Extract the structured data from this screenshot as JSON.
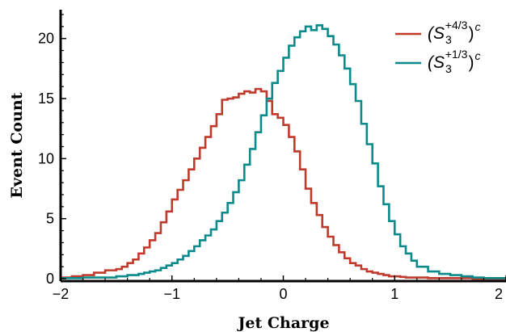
{
  "chart_data": {
    "type": "line",
    "step": true,
    "xlabel": "Jet Charge",
    "ylabel": "Event Count",
    "xlim": [
      -2,
      2
    ],
    "ylim": [
      -0.2,
      22.4
    ],
    "x_ticks": [
      -2,
      -1,
      0,
      1,
      2
    ],
    "y_ticks": [
      0,
      5,
      10,
      15,
      20
    ],
    "x_tick_labels": [
      "−2",
      "−1",
      "0",
      "1",
      "2"
    ],
    "y_tick_labels": [
      "0",
      "5",
      "10",
      "15",
      "20"
    ],
    "grid": false,
    "legend_position": "top-right",
    "bin_edges": [
      -2.0,
      -1.9,
      -1.8,
      -1.7,
      -1.6,
      -1.5,
      -1.45,
      -1.4,
      -1.35,
      -1.3,
      -1.25,
      -1.2,
      -1.15,
      -1.1,
      -1.05,
      -1.0,
      -0.95,
      -0.9,
      -0.85,
      -0.8,
      -0.75,
      -0.7,
      -0.65,
      -0.6,
      -0.55,
      -0.5,
      -0.45,
      -0.4,
      -0.35,
      -0.3,
      -0.25,
      -0.2,
      -0.15,
      -0.1,
      -0.05,
      0.0,
      0.05,
      0.1,
      0.15,
      0.2,
      0.25,
      0.3,
      0.35,
      0.4,
      0.45,
      0.5,
      0.55,
      0.6,
      0.65,
      0.7,
      0.75,
      0.8,
      0.85,
      0.9,
      0.95,
      1.0,
      1.05,
      1.1,
      1.15,
      1.2,
      1.3,
      1.4,
      1.5,
      1.6,
      1.7,
      1.8,
      1.9,
      2.0
    ],
    "series": [
      {
        "name": "(S3+4/3)c",
        "legend": {
          "base": "(S",
          "sub": "3",
          "sup": "+4/3",
          "close": ")",
          "exp": "c"
        },
        "color": "#c0392b",
        "values": [
          0.1,
          0.2,
          0.3,
          0.5,
          0.7,
          0.8,
          1.0,
          1.3,
          1.6,
          2.1,
          2.6,
          3.2,
          3.8,
          4.7,
          5.6,
          6.6,
          7.4,
          8.2,
          9.1,
          10.0,
          10.9,
          11.8,
          12.7,
          13.7,
          14.9,
          15.0,
          15.1,
          15.4,
          15.6,
          15.5,
          15.8,
          15.6,
          14.8,
          13.7,
          13.4,
          12.8,
          11.8,
          10.6,
          9.1,
          7.5,
          6.3,
          5.3,
          4.3,
          3.5,
          2.8,
          2.2,
          1.7,
          1.3,
          1.1,
          0.8,
          0.6,
          0.5,
          0.4,
          0.3,
          0.2,
          0.2,
          0.15,
          0.1,
          0.1,
          0.1,
          0.05,
          0.05,
          0.05,
          0.05,
          0.0,
          0.0,
          0.0
        ]
      },
      {
        "name": "(S3+1/3)c",
        "legend": {
          "base": "(S",
          "sub": "3",
          "sup": "+1/3",
          "close": ")",
          "exp": "c"
        },
        "color": "#0a8a8a",
        "values": [
          0.05,
          0.05,
          0.1,
          0.1,
          0.1,
          0.2,
          0.2,
          0.3,
          0.3,
          0.4,
          0.5,
          0.6,
          0.7,
          0.9,
          1.1,
          1.3,
          1.6,
          1.9,
          2.3,
          2.7,
          3.2,
          3.6,
          4.1,
          4.8,
          5.5,
          6.3,
          7.2,
          8.2,
          9.5,
          10.8,
          12.2,
          13.6,
          15.0,
          16.3,
          17.3,
          18.4,
          19.4,
          20.1,
          20.6,
          21.0,
          20.7,
          21.1,
          20.8,
          20.2,
          19.5,
          18.6,
          17.5,
          16.2,
          14.8,
          12.9,
          11.2,
          9.6,
          7.7,
          6.2,
          4.8,
          3.7,
          2.7,
          2.1,
          1.5,
          1.0,
          0.6,
          0.4,
          0.3,
          0.2,
          0.1,
          0.05,
          0.05
        ]
      }
    ]
  }
}
